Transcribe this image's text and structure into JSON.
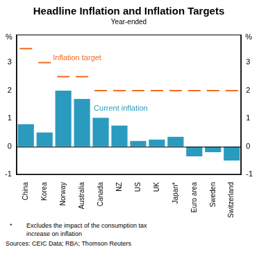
{
  "chart_data": {
    "type": "bar",
    "title": "Headline Inflation and Inflation Targets",
    "subtitle": "Year-ended",
    "ylabel": "%",
    "categories": [
      "China",
      "Korea",
      "Norway",
      "Australia",
      "Canada",
      "NZ",
      "US",
      "UK",
      "Japan*",
      "Euro area",
      "Sweden",
      "Switzerland"
    ],
    "series": [
      {
        "name": "Current inflation",
        "type": "bar",
        "color": "#2a9bbf",
        "values": [
          0.8,
          0.5,
          2.0,
          1.7,
          1.03,
          0.75,
          0.2,
          0.25,
          0.35,
          -0.35,
          -0.2,
          -0.5
        ]
      },
      {
        "name": "Inflation target",
        "type": "line",
        "marker": "dash",
        "line_style": "none",
        "color": "#f26b21",
        "values": [
          3.5,
          3.0,
          2.5,
          2.5,
          2.0,
          2.0,
          2.0,
          2.0,
          2.0,
          2.0,
          2.0,
          2.0
        ]
      }
    ],
    "ylim": [
      -1,
      4
    ],
    "yticks": [
      -1,
      0,
      1,
      2,
      3
    ],
    "grid": false,
    "notes": [
      {
        "mark": "*",
        "text": "Excludes the impact of the consumption tax increase on inflation"
      }
    ],
    "source": "Sources: CEIC Data; RBA; Thomson Reuters"
  }
}
